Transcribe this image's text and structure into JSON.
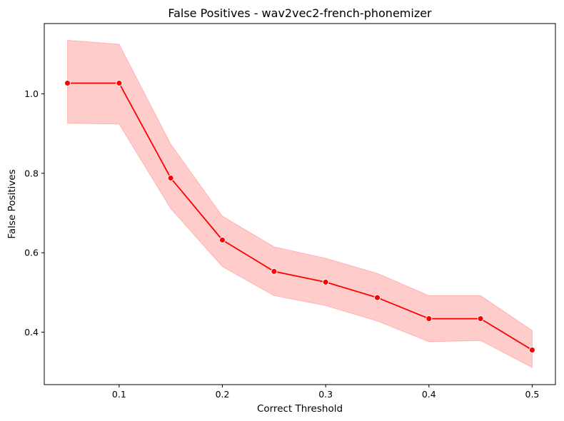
{
  "chart_data": {
    "type": "line",
    "title": "False Positives - wav2vec2-french-phonemizer",
    "xlabel": "Correct Threshold",
    "ylabel": "False Positives",
    "x": [
      0.05,
      0.1,
      0.15,
      0.2,
      0.25,
      0.3,
      0.35,
      0.4,
      0.45,
      0.5
    ],
    "series": [
      {
        "values": [
          1.027,
          1.027,
          0.788,
          0.632,
          0.553,
          0.526,
          0.487,
          0.434,
          0.434,
          0.355
        ],
        "ci_lower": [
          0.926,
          0.924,
          0.711,
          0.565,
          0.492,
          0.467,
          0.428,
          0.376,
          0.379,
          0.311
        ],
        "ci_upper": [
          1.135,
          1.125,
          0.873,
          0.692,
          0.615,
          0.586,
          0.548,
          0.492,
          0.492,
          0.404
        ],
        "color": "#ff0000",
        "band_color": "#ff0000"
      }
    ],
    "xlim": [
      0.0275,
      0.5225
    ],
    "ylim": [
      0.268,
      1.177
    ],
    "xticks": [
      0.1,
      0.2,
      0.3,
      0.4,
      0.5
    ],
    "xtick_labels": [
      "0.1",
      "0.2",
      "0.3",
      "0.4",
      "0.5"
    ],
    "yticks": [
      0.4,
      0.6,
      0.8,
      1.0
    ],
    "ytick_labels": [
      "0.4",
      "0.6",
      "0.8",
      "1.0"
    ],
    "grid": false,
    "legend": "none",
    "marker": "circle"
  }
}
